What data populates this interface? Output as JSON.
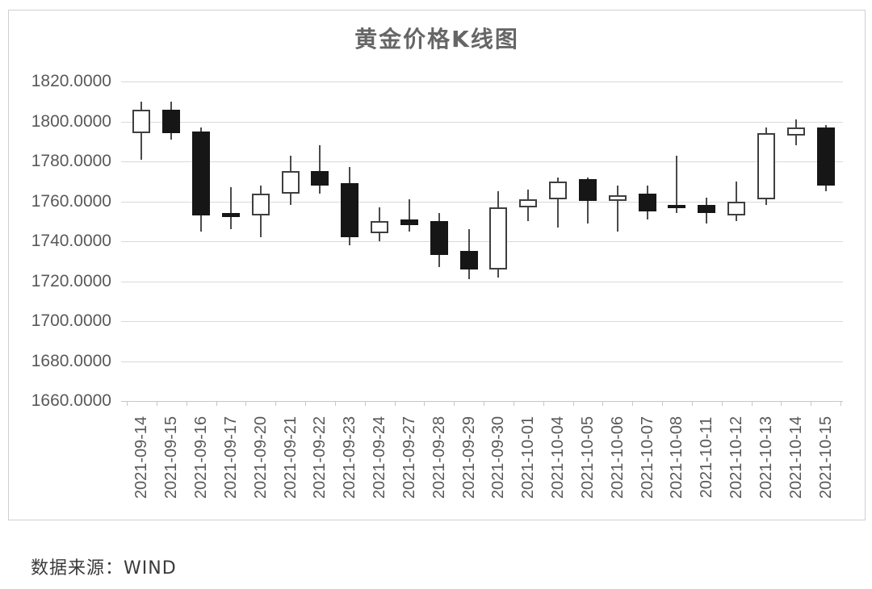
{
  "page": {
    "background": "#ffffff"
  },
  "footer": {
    "source": "数据来源：WIND"
  },
  "chart_data": {
    "type": "candlestick",
    "title": "黄金价格K线图",
    "xlabel": "",
    "ylabel": "",
    "ylim": [
      1660,
      1820
    ],
    "y_tick_step": 20,
    "y_tick_labels": [
      "1820.0000",
      "1800.0000",
      "1780.0000",
      "1760.0000",
      "1740.0000",
      "1720.0000",
      "1700.0000",
      "1680.0000",
      "1660.0000"
    ],
    "grid": true,
    "legend": false,
    "up_style": "hollow-white",
    "down_style": "filled-black",
    "candles": [
      {
        "date": "2021-09-14",
        "open": 1794,
        "high": 1810,
        "low": 1781,
        "close": 1806
      },
      {
        "date": "2021-09-15",
        "open": 1806,
        "high": 1810,
        "low": 1791,
        "close": 1794
      },
      {
        "date": "2021-09-16",
        "open": 1795,
        "high": 1797,
        "low": 1745,
        "close": 1753
      },
      {
        "date": "2021-09-17",
        "open": 1754,
        "high": 1767,
        "low": 1746,
        "close": 1752
      },
      {
        "date": "2021-09-20",
        "open": 1753,
        "high": 1768,
        "low": 1742,
        "close": 1764
      },
      {
        "date": "2021-09-21",
        "open": 1764,
        "high": 1783,
        "low": 1758,
        "close": 1775
      },
      {
        "date": "2021-09-22",
        "open": 1775,
        "high": 1788,
        "low": 1764,
        "close": 1768
      },
      {
        "date": "2021-09-23",
        "open": 1769,
        "high": 1777,
        "low": 1738,
        "close": 1742
      },
      {
        "date": "2021-09-24",
        "open": 1744,
        "high": 1757,
        "low": 1740,
        "close": 1750
      },
      {
        "date": "2021-09-27",
        "open": 1751,
        "high": 1761,
        "low": 1745,
        "close": 1748
      },
      {
        "date": "2021-09-28",
        "open": 1750,
        "high": 1754,
        "low": 1727,
        "close": 1733
      },
      {
        "date": "2021-09-29",
        "open": 1735,
        "high": 1746,
        "low": 1721,
        "close": 1726
      },
      {
        "date": "2021-09-30",
        "open": 1726,
        "high": 1765,
        "low": 1722,
        "close": 1757
      },
      {
        "date": "2021-10-01",
        "open": 1757,
        "high": 1766,
        "low": 1750,
        "close": 1761
      },
      {
        "date": "2021-10-04",
        "open": 1761,
        "high": 1772,
        "low": 1747,
        "close": 1770
      },
      {
        "date": "2021-10-05",
        "open": 1771,
        "high": 1772,
        "low": 1749,
        "close": 1760
      },
      {
        "date": "2021-10-06",
        "open": 1760,
        "high": 1768,
        "low": 1745,
        "close": 1763
      },
      {
        "date": "2021-10-07",
        "open": 1764,
        "high": 1768,
        "low": 1751,
        "close": 1755
      },
      {
        "date": "2021-10-08",
        "open": 1758,
        "high": 1783,
        "low": 1754,
        "close": 1757
      },
      {
        "date": "2021-10-11",
        "open": 1758,
        "high": 1762,
        "low": 1749,
        "close": 1754
      },
      {
        "date": "2021-10-12",
        "open": 1753,
        "high": 1770,
        "low": 1750,
        "close": 1760
      },
      {
        "date": "2021-10-13",
        "open": 1761,
        "high": 1797,
        "low": 1758,
        "close": 1794
      },
      {
        "date": "2021-10-14",
        "open": 1793,
        "high": 1801,
        "low": 1788,
        "close": 1797
      },
      {
        "date": "2021-10-15",
        "open": 1797,
        "high": 1798,
        "low": 1765,
        "close": 1768
      }
    ],
    "colors": {
      "up_fill": "#ffffff",
      "up_border": "#3f3f3f",
      "down_fill": "#161616",
      "wick": "#4a4a4a",
      "gridline": "#d9d9d9",
      "axis_line": "#c6c6c6",
      "tick": "#c6c6c6",
      "axis_label": "#595959",
      "title": "#666666",
      "source": "#3a3a3a",
      "frame_border": "#cfcfcf"
    }
  }
}
